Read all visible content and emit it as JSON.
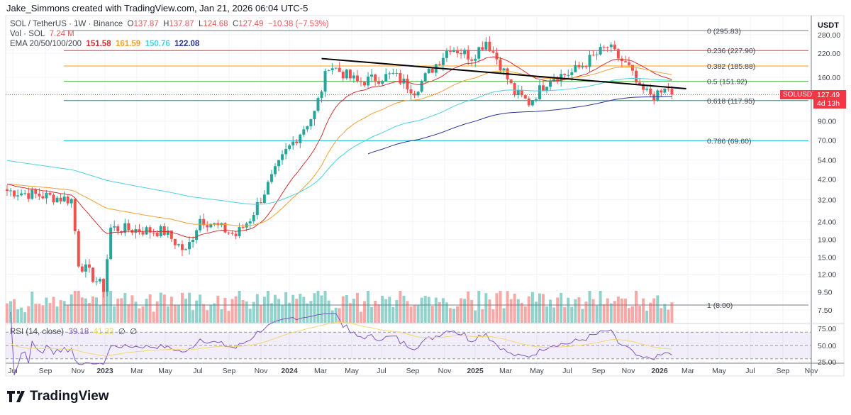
{
  "attribution": "Jake_Simmons created with TradingView.com, Jan 21, 2026 06:04 UTC-5",
  "header": {
    "symbol": "SOL / TetherUS · 1W · Binance",
    "open_l": "O",
    "open": "137.87",
    "high_l": "H",
    "high": "137.87",
    "low_l": "L",
    "low": "124.68",
    "close_l": "C",
    "close": "127.49",
    "change": "−10.38 (−7.53%)"
  },
  "volume": {
    "label": "Vol · SOL",
    "value": "7.24 M"
  },
  "ema": {
    "label": "EMA 20/50/100/200",
    "values": [
      "151.58",
      "161.59",
      "150.76",
      "122.08"
    ],
    "colors": [
      "#d32f2f",
      "#f0a030",
      "#4dd0e1",
      "#283593"
    ]
  },
  "rsi": {
    "label": "RSI (14, close)",
    "value": "39.18",
    "ma": "41.33",
    "extra1": "∅",
    "extra2": "∅",
    "levels": [
      "75.00",
      "50.00",
      "25.00"
    ]
  },
  "price_badge": {
    "symbol": "SOLUSDT",
    "price": "127.49",
    "countdown": "4d 13h"
  },
  "currency": "USDT",
  "logo": "TradingView",
  "chart_data": {
    "type": "candlestick",
    "title": "SOL / TetherUS 1W",
    "yscale": "log",
    "y_ticks": [
      "280.00",
      "220.00",
      "160.00",
      "90.00",
      "70.00",
      "54.00",
      "42.00",
      "32.00",
      "24.00",
      "19.00",
      "15.00",
      "12.00",
      "9.50",
      "7.50"
    ],
    "y_tick_values": [
      280,
      220,
      160,
      90,
      70,
      54,
      42,
      32,
      24,
      19,
      15,
      12,
      9.5,
      7.5
    ],
    "x_ticks": [
      "Jul",
      "Sep",
      "Nov",
      "2023",
      "Mar",
      "May",
      "Jul",
      "Sep",
      "Nov",
      "2024",
      "Mar",
      "May",
      "Jul",
      "Sep",
      "Nov",
      "2025",
      "Mar",
      "May",
      "Jul",
      "Sep",
      "Nov",
      "2026",
      "Mar",
      "May",
      "Jul",
      "Sep",
      "Nov"
    ],
    "price_path": [
      [
        0,
        36
      ],
      [
        18,
        32
      ],
      [
        20,
        14
      ],
      [
        27,
        10
      ],
      [
        29,
        22
      ],
      [
        44,
        21
      ],
      [
        50,
        16
      ],
      [
        54,
        25
      ],
      [
        64,
        20
      ],
      [
        68,
        25
      ],
      [
        78,
        60
      ],
      [
        86,
        100
      ],
      [
        90,
        190
      ],
      [
        98,
        150
      ],
      [
        108,
        165
      ],
      [
        114,
        135
      ],
      [
        124,
        240
      ],
      [
        130,
        210
      ],
      [
        134,
        260
      ],
      [
        138,
        190
      ],
      [
        142,
        130
      ],
      [
        146,
        115
      ],
      [
        152,
        160
      ],
      [
        158,
        170
      ],
      [
        168,
        240
      ],
      [
        174,
        180
      ],
      [
        177,
        135
      ],
      [
        182,
        125
      ],
      [
        185,
        140
      ],
      [
        186,
        127.49
      ]
    ],
    "fib_levels": [
      {
        "label": "0 (295.83)",
        "value": 295.83,
        "color": "#787b86"
      },
      {
        "label": "0.236 (227.90)",
        "value": 227.9,
        "color": "#f23645"
      },
      {
        "label": "0.382 (185.88)",
        "value": 185.88,
        "color": "#ff9800"
      },
      {
        "label": "0.5 (151.92)",
        "value": 151.92,
        "color": "#4caf50"
      },
      {
        "label": "0.618 (117.95)",
        "value": 117.95,
        "color": "#089981"
      },
      {
        "label": "0.786 (69.60)",
        "value": 69.6,
        "color": "#00bcd4"
      },
      {
        "label": "1 (8.00)",
        "value": 8.0,
        "color": "#787b86"
      }
    ],
    "trendline": [
      [
        88,
        205
      ],
      [
        190,
        138
      ]
    ]
  }
}
